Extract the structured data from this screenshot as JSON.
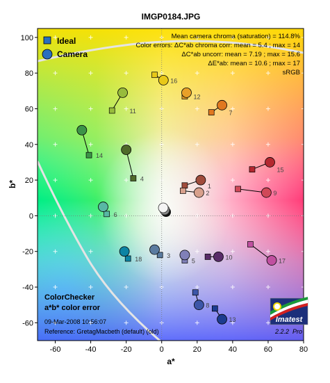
{
  "chart_data": {
    "type": "scatter",
    "title": "IMGP0184.JPG",
    "xlabel": "a*",
    "ylabel": "b*",
    "xlim": [
      -70,
      80
    ],
    "ylim": [
      -70,
      105
    ],
    "xticks": [
      "-60",
      "-40",
      "-20",
      "0",
      "20",
      "40",
      "60",
      "80"
    ],
    "yticks": [
      "100",
      "80",
      "60",
      "40",
      "20",
      "0",
      "-20",
      "-40",
      "-60"
    ],
    "grid": true,
    "legend": {
      "position": "top-left",
      "ideal_label": "Ideal",
      "camera_label": "Camera"
    },
    "stats": [
      "Mean camera chroma (saturation) = 114.8%",
      "Color errors: ΔC*ab chroma corr: mean = 5.4 ; max = 14",
      "ΔC*ab uncorr: mean = 7.19 ; max = 15.6",
      "ΔE*ab: mean = 10.6 ; max = 17",
      "sRGB"
    ],
    "info": {
      "line1": "ColorChecker",
      "line2": "a*b* color error",
      "date": "09-Mar-2008 10:56:07",
      "reference": "Reference: GretagMacbeth (default) (old)"
    },
    "logo": {
      "text": "Imatest",
      "version": "2.2.2",
      "edition": "Pro"
    },
    "patches": [
      {
        "label": "1",
        "ideal": [
          13,
          17
        ],
        "camera": [
          22,
          20
        ],
        "color": "#a04c3c"
      },
      {
        "label": "2",
        "ideal": [
          12,
          14
        ],
        "camera": [
          21,
          13
        ],
        "color": "#d8a08c"
      },
      {
        "label": "3",
        "ideal": [
          -1,
          -22
        ],
        "camera": [
          -4,
          -19
        ],
        "color": "#5a7ba0"
      },
      {
        "label": "4",
        "ideal": [
          -16,
          21
        ],
        "camera": [
          -20,
          37
        ],
        "color": "#4f6a2a"
      },
      {
        "label": "5",
        "ideal": [
          13,
          -25
        ],
        "camera": [
          13,
          -22
        ],
        "color": "#8080b8"
      },
      {
        "label": "6",
        "ideal": [
          -31,
          1
        ],
        "camera": [
          -33,
          5
        ],
        "color": "#58b8a4"
      },
      {
        "label": "7",
        "ideal": [
          28,
          58
        ],
        "camera": [
          34,
          62
        ],
        "color": "#e07820"
      },
      {
        "label": "8",
        "ideal": [
          19,
          -43
        ],
        "camera": [
          21,
          -50
        ],
        "color": "#3c56a8"
      },
      {
        "label": "9",
        "ideal": [
          43,
          15
        ],
        "camera": [
          59,
          13
        ],
        "color": "#d04858"
      },
      {
        "label": "10",
        "ideal": [
          26,
          -23
        ],
        "camera": [
          32,
          -23
        ],
        "color": "#582c68"
      },
      {
        "label": "11",
        "ideal": [
          -28,
          59
        ],
        "camera": [
          -22,
          69
        ],
        "color": "#98bc3c"
      },
      {
        "label": "12",
        "ideal": [
          13,
          67
        ],
        "camera": [
          14,
          69
        ],
        "color": "#e8a028"
      },
      {
        "label": "13",
        "ideal": [
          30,
          -52
        ],
        "camera": [
          34,
          -58
        ],
        "color": "#1c3c90"
      },
      {
        "label": "14",
        "ideal": [
          -41,
          34
        ],
        "camera": [
          -45,
          48
        ],
        "color": "#3c9448"
      },
      {
        "label": "15",
        "ideal": [
          51,
          26
        ],
        "camera": [
          61,
          30
        ],
        "color": "#b42830"
      },
      {
        "label": "16",
        "ideal": [
          -4,
          79
        ],
        "camera": [
          1,
          76
        ],
        "color": "#e8c818"
      },
      {
        "label": "17",
        "ideal": [
          50,
          -16
        ],
        "camera": [
          62,
          -25
        ],
        "color": "#c050a0"
      },
      {
        "label": "18",
        "ideal": [
          -19,
          -24
        ],
        "camera": [
          -21,
          -20
        ],
        "color": "#0c84a4"
      }
    ]
  }
}
